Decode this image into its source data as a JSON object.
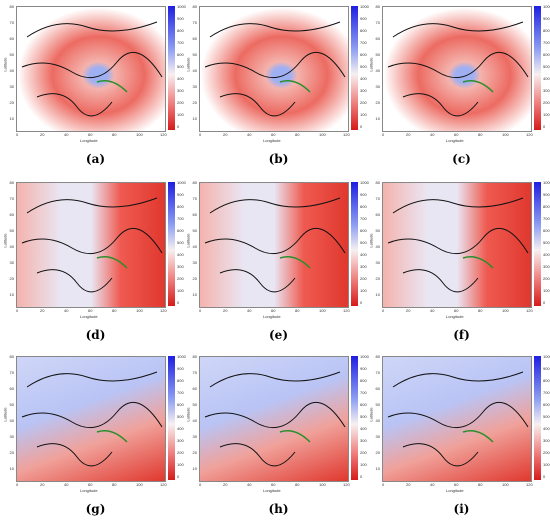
{
  "axes": {
    "ylabel": "Latitude",
    "xlabel": "Longitude",
    "yticks": [
      "80",
      "70",
      "60",
      "50",
      "40",
      "30",
      "20",
      "10"
    ],
    "xticks": [
      "0",
      "20",
      "40",
      "60",
      "80",
      "100",
      "120"
    ],
    "cbar_ticks": [
      "1000",
      "900",
      "800",
      "700",
      "600",
      "500",
      "400",
      "300",
      "200",
      "100",
      "0"
    ]
  },
  "colors": {
    "red": "#e0382e",
    "pink": "#f4b3ad",
    "blue": "#7b8ff0",
    "white": "#f4f2f5"
  },
  "panels": [
    {
      "id": "a",
      "caption": "(a)"
    },
    {
      "id": "b",
      "caption": "(b)"
    },
    {
      "id": "c",
      "caption": "(c)"
    },
    {
      "id": "d",
      "caption": "(d)"
    },
    {
      "id": "e",
      "caption": "(e)"
    },
    {
      "id": "f",
      "caption": "(f)"
    },
    {
      "id": "g",
      "caption": "(g)"
    },
    {
      "id": "h",
      "caption": "(h)"
    },
    {
      "id": "i",
      "caption": "(i)"
    }
  ]
}
